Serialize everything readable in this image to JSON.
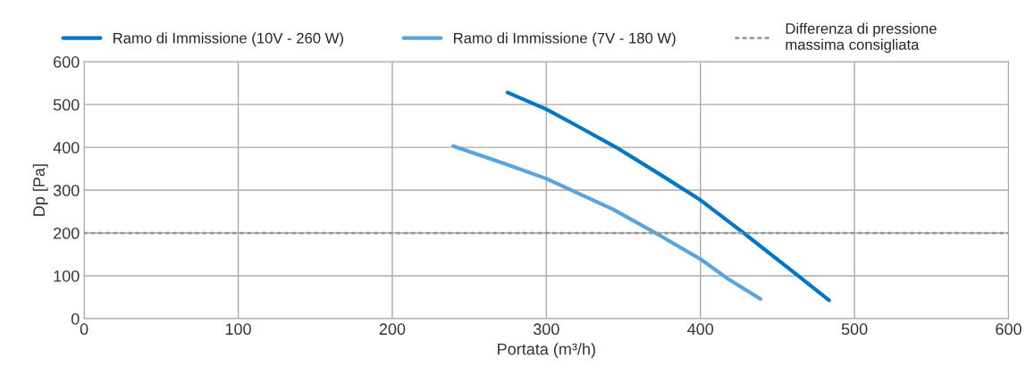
{
  "chart_data": {
    "type": "line",
    "xlabel": "Portata (m³/h)",
    "ylabel": "Dp [Pa]",
    "xlim": [
      0,
      600
    ],
    "xticks": [
      0,
      100,
      200,
      300,
      400,
      500,
      600
    ],
    "ylim": [
      0,
      600
    ],
    "yticks": [
      0,
      100,
      200,
      300,
      400,
      500,
      600
    ],
    "grid": true,
    "legend": "top",
    "marker": "none",
    "line_style": "solid",
    "series": [
      {
        "name": "Ramo di Immissione (10V - 260 W)",
        "color": "#0077c0",
        "x": [
          274.8,
          300,
          322.1,
          345.3,
          372.4,
          400,
          428.4,
          463.2,
          483.5
        ],
        "values": [
          528,
          489,
          446,
          400,
          340,
          277,
          199,
          101,
          43
        ]
      },
      {
        "name": "Ramo di Immissione (7V - 180 W)",
        "color": "#5ba3db",
        "x": [
          239.6,
          271.9,
          300,
          343.4,
          371.4,
          400,
          418.7,
          439
        ],
        "values": [
          403,
          363,
          327,
          255,
          199,
          139,
          91,
          46
        ]
      }
    ],
    "ref_lines": [
      {
        "axis": "y",
        "value": 200,
        "label": "Differenza di pressione\nmassima consigliata",
        "color": "#999999",
        "line_style": "dotted"
      }
    ]
  }
}
